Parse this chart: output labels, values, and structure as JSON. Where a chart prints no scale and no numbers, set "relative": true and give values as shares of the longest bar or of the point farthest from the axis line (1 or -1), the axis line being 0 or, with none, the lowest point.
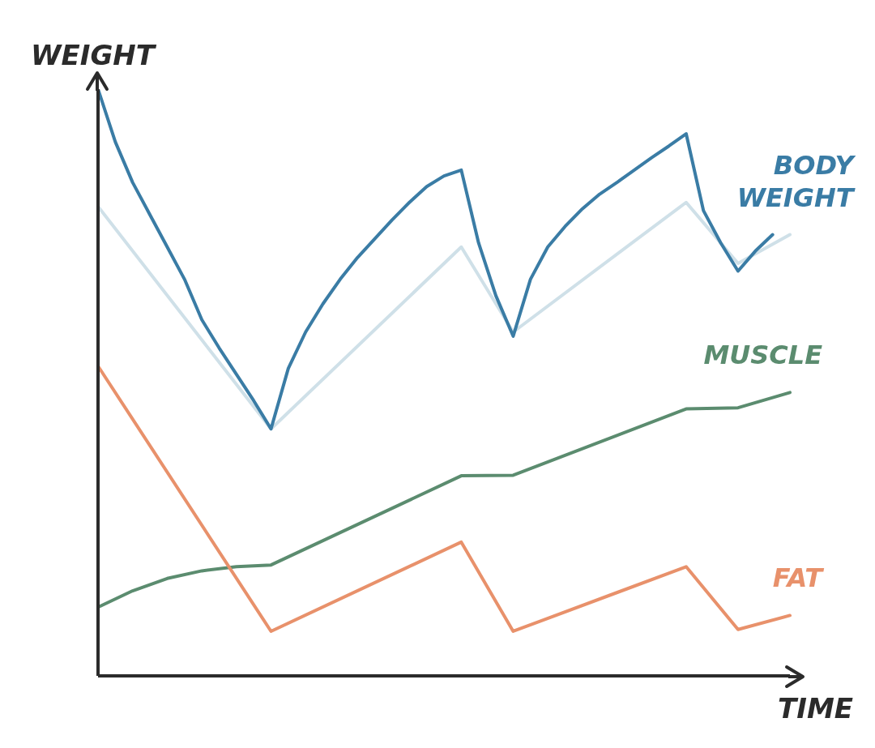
{
  "chart_data": {
    "type": "line",
    "relative": true,
    "tick_labels": false,
    "xlabel": "TIME",
    "ylabel": "WEIGHT",
    "categories": [
      null,
      null,
      null,
      null,
      null,
      null,
      null,
      null,
      null,
      null,
      null,
      null,
      null,
      null,
      null,
      null,
      null,
      null,
      null,
      null,
      null,
      null,
      null,
      null,
      null,
      null,
      null,
      null,
      null,
      null,
      null,
      null,
      null,
      null,
      null,
      null,
      null,
      null,
      null,
      null,
      null
    ],
    "series": [
      {
        "color": "#cfe0e8",
        "values": [
          0.8,
          null,
          null,
          null,
          null,
          null,
          null,
          null,
          null,
          null,
          0.421,
          null,
          null,
          null,
          null,
          null,
          null,
          null,
          null,
          null,
          null,
          0.731,
          null,
          null,
          0.586,
          null,
          null,
          null,
          null,
          null,
          null,
          null,
          null,
          null,
          0.807,
          null,
          null,
          0.703,
          null,
          null,
          0.752
        ]
      },
      {
        "name": "BODY WEIGHT",
        "color": "#3a7ca5",
        "values": [
          1.0,
          0.91,
          0.841,
          0.786,
          0.731,
          0.676,
          0.607,
          0.559,
          0.514,
          0.469,
          0.421,
          0.524,
          0.586,
          0.634,
          0.676,
          0.713,
          0.745,
          0.777,
          0.807,
          0.834,
          0.852,
          0.862,
          0.738,
          0.648,
          0.579,
          0.676,
          0.731,
          0.766,
          0.796,
          0.821,
          0.841,
          0.862,
          0.883,
          0.903,
          0.924,
          0.793,
          0.738,
          0.69,
          0.724,
          0.752,
          null
        ]
      },
      {
        "name": "MUSCLE",
        "color": "#5b8c6f",
        "values": [
          0.117,
          null,
          0.145,
          null,
          0.166,
          null,
          0.179,
          null,
          0.186,
          null,
          0.189,
          null,
          null,
          null,
          null,
          null,
          null,
          null,
          null,
          null,
          null,
          0.341,
          null,
          null,
          0.342,
          null,
          null,
          null,
          null,
          null,
          null,
          null,
          null,
          null,
          0.455,
          null,
          null,
          0.457,
          null,
          null,
          0.483
        ]
      },
      {
        "name": "FAT",
        "color": "#e8916b",
        "values": [
          0.528,
          null,
          null,
          null,
          null,
          null,
          null,
          null,
          null,
          null,
          0.076,
          null,
          null,
          null,
          null,
          null,
          null,
          null,
          null,
          null,
          null,
          0.228,
          null,
          null,
          0.076,
          null,
          null,
          null,
          null,
          null,
          null,
          null,
          null,
          null,
          0.186,
          null,
          null,
          0.079,
          null,
          null,
          0.103
        ]
      }
    ]
  }
}
